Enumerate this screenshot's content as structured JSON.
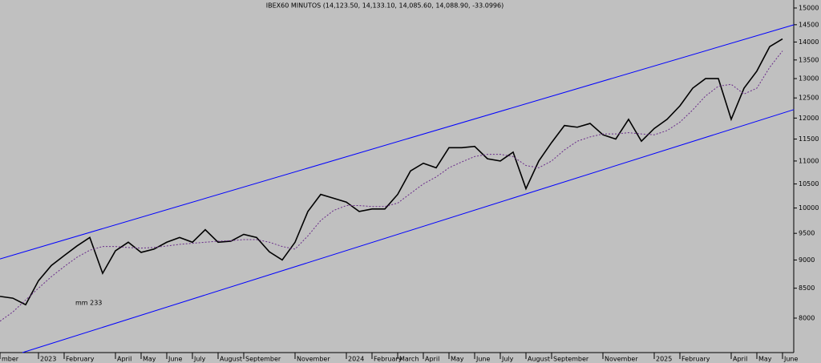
{
  "chart_data": {
    "type": "line",
    "title": "IBEX60 MINUTOS (14,123.50, 14,133.10, 14,085.60, 14,088.90, -33.0996)",
    "categories": [
      "mber",
      null,
      null,
      "2023",
      null,
      "February",
      null,
      null,
      null,
      "April",
      null,
      "May",
      null,
      "June",
      null,
      "July",
      null,
      "August",
      null,
      "September",
      null,
      null,
      null,
      "November",
      null,
      null,
      null,
      "2024",
      null,
      "February",
      null,
      "March",
      null,
      "April",
      null,
      "May",
      null,
      "June",
      null,
      "July",
      null,
      "August",
      null,
      "September",
      null,
      null,
      null,
      "November",
      null,
      null,
      null,
      "2025",
      null,
      "February",
      null,
      null,
      null,
      "April",
      null,
      "May",
      null,
      "June"
    ],
    "series": [
      {
        "color": "#000000",
        "dashed": false,
        "values": [
          8360,
          8330,
          8220,
          8630,
          8900,
          9080,
          9260,
          9420,
          8760,
          9170,
          9330,
          9140,
          9200,
          9330,
          9420,
          9330,
          9570,
          9330,
          9350,
          9480,
          9420,
          9150,
          9000,
          9330,
          9930,
          10280,
          10200,
          10120,
          9930,
          9980,
          9980,
          10280,
          10780,
          10950,
          10850,
          11300,
          11300,
          11330,
          11050,
          11000,
          11200,
          10400,
          11000,
          11420,
          11820,
          11780,
          11870,
          11600,
          11500,
          11970,
          11450,
          11750,
          11970,
          12300,
          12750,
          13000,
          13000,
          11970,
          12750,
          13200,
          13870,
          14089
        ]
      },
      {
        "color": "#6a2c8a",
        "dashed": true,
        "values": [
          7950,
          8100,
          8300,
          8500,
          8700,
          8880,
          9050,
          9180,
          9250,
          9250,
          9230,
          9220,
          9230,
          9260,
          9290,
          9310,
          9330,
          9350,
          9360,
          9380,
          9380,
          9330,
          9250,
          9200,
          9450,
          9750,
          9950,
          10050,
          10050,
          10030,
          10030,
          10100,
          10300,
          10500,
          10650,
          10850,
          10980,
          11100,
          11150,
          11150,
          11100,
          10900,
          10850,
          11000,
          11250,
          11450,
          11550,
          11620,
          11620,
          11650,
          11620,
          11600,
          11700,
          11900,
          12200,
          12550,
          12800,
          12850,
          12600,
          12750,
          13300,
          13750
        ]
      }
    ],
    "trend_lines": [
      {
        "color": "#0000ff",
        "x": [
          0,
          61.9
        ],
        "values": [
          9020,
          14500
        ]
      },
      {
        "color": "#0000ff",
        "x": [
          1.75,
          61.9
        ],
        "values": [
          7460,
          12210
        ]
      }
    ],
    "annotation": {
      "text": "mm 233",
      "color": "#6a2c8a"
    },
    "log_scale": true,
    "ylim": [
      7460,
      15245
    ],
    "yticks": [
      8000,
      8500,
      9000,
      9500,
      10000,
      10500,
      11000,
      11500,
      12000,
      12500,
      13000,
      13500,
      14000,
      14500,
      15000
    ]
  }
}
